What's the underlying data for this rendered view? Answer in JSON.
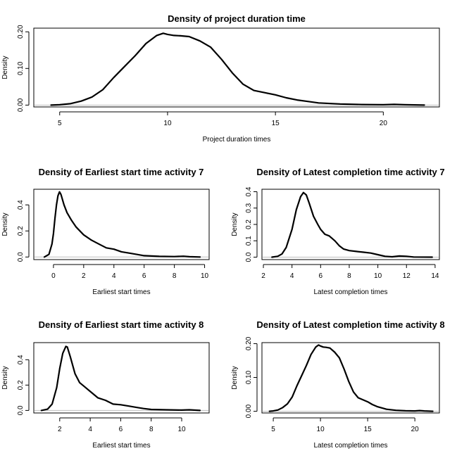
{
  "chart_data": [
    {
      "type": "line",
      "title": "Density of project duration time",
      "xlabel": "Project duration times",
      "ylabel": "Density",
      "xlim": [
        3.8,
        22.6
      ],
      "ylim": [
        -0.005,
        0.21
      ],
      "xticks": [
        5,
        10,
        15,
        20
      ],
      "yticks": [
        0.0,
        0.1,
        0.2
      ],
      "ytick_labels": [
        "0.00",
        "0.10",
        "0.20"
      ],
      "series": [
        {
          "x": [
            4.6,
            5.0,
            5.5,
            6.0,
            6.5,
            7.0,
            7.5,
            8.0,
            8.5,
            9.0,
            9.5,
            9.8,
            10.0,
            10.3,
            10.6,
            11.0,
            11.5,
            12.0,
            12.5,
            13.0,
            13.5,
            14.0,
            14.5,
            15.0,
            15.5,
            16.0,
            16.5,
            17.0,
            18.0,
            19.0,
            20.0,
            20.5,
            21.0,
            21.9
          ],
          "y": [
            0.0,
            0.001,
            0.004,
            0.011,
            0.022,
            0.042,
            0.075,
            0.105,
            0.135,
            0.168,
            0.19,
            0.196,
            0.193,
            0.19,
            0.189,
            0.187,
            0.175,
            0.158,
            0.125,
            0.088,
            0.057,
            0.04,
            0.034,
            0.028,
            0.02,
            0.014,
            0.01,
            0.006,
            0.003,
            0.0015,
            0.001,
            0.002,
            0.001,
            0.0
          ]
        }
      ]
    },
    {
      "type": "line",
      "title": "Density of Earliest start time activity  7",
      "xlabel": "Earliest start times",
      "ylabel": "Density",
      "xlim": [
        -1.3,
        10.3
      ],
      "ylim": [
        -0.02,
        0.52
      ],
      "xticks": [
        0,
        2,
        4,
        6,
        8,
        10
      ],
      "yticks": [
        0.0,
        0.2,
        0.4
      ],
      "ytick_labels": [
        "0.0",
        "0.2",
        "0.4"
      ],
      "series": [
        {
          "x": [
            -0.6,
            -0.3,
            -0.1,
            0.0,
            0.1,
            0.2,
            0.3,
            0.4,
            0.5,
            0.7,
            0.9,
            1.2,
            1.5,
            2.0,
            2.5,
            3.0,
            3.5,
            4.0,
            4.5,
            5.0,
            5.5,
            6.0,
            7.0,
            8.0,
            8.6,
            9.0,
            9.7
          ],
          "y": [
            0.0,
            0.02,
            0.1,
            0.18,
            0.3,
            0.4,
            0.47,
            0.5,
            0.48,
            0.4,
            0.34,
            0.28,
            0.23,
            0.17,
            0.13,
            0.1,
            0.07,
            0.06,
            0.04,
            0.03,
            0.02,
            0.01,
            0.005,
            0.003,
            0.006,
            0.002,
            0.0
          ]
        }
      ]
    },
    {
      "type": "line",
      "title": "Density of Latest completion time activity  7",
      "xlabel": "Latest completion times",
      "ylabel": "Density",
      "xlim": [
        1.9,
        14.3
      ],
      "ylim": [
        -0.015,
        0.415
      ],
      "xticks": [
        2,
        4,
        6,
        8,
        10,
        12,
        14
      ],
      "yticks": [
        0.0,
        0.1,
        0.2,
        0.3,
        0.4
      ],
      "ytick_labels": [
        "0.0",
        "0.1",
        "0.2",
        "0.3",
        "0.4"
      ],
      "series": [
        {
          "x": [
            2.6,
            3.0,
            3.3,
            3.6,
            4.0,
            4.3,
            4.6,
            4.8,
            5.0,
            5.2,
            5.5,
            5.8,
            6.0,
            6.3,
            6.6,
            7.0,
            7.3,
            7.6,
            8.0,
            8.5,
            9.0,
            9.5,
            10.0,
            10.5,
            11.0,
            11.5,
            12.0,
            12.5,
            13.8
          ],
          "y": [
            0.0,
            0.005,
            0.02,
            0.06,
            0.17,
            0.29,
            0.37,
            0.395,
            0.38,
            0.33,
            0.25,
            0.2,
            0.17,
            0.14,
            0.13,
            0.1,
            0.07,
            0.05,
            0.04,
            0.035,
            0.03,
            0.025,
            0.015,
            0.005,
            0.002,
            0.007,
            0.005,
            0.001,
            0.0
          ]
        }
      ]
    },
    {
      "type": "line",
      "title": "Density of Earliest start time activity  8",
      "xlabel": "Earliest start times",
      "ylabel": "Density",
      "xlim": [
        0.3,
        11.8
      ],
      "ylim": [
        -0.02,
        0.535
      ],
      "xticks": [
        2,
        4,
        6,
        8,
        10
      ],
      "yticks": [
        0.0,
        0.2,
        0.4
      ],
      "ytick_labels": [
        "0.0",
        "0.2",
        "0.4"
      ],
      "series": [
        {
          "x": [
            0.8,
            1.2,
            1.5,
            1.8,
            2.0,
            2.2,
            2.4,
            2.5,
            2.7,
            3.0,
            3.3,
            3.6,
            4.0,
            4.5,
            5.0,
            5.5,
            6.0,
            6.5,
            7.0,
            7.5,
            8.0,
            9.0,
            10.0,
            10.5,
            11.2
          ],
          "y": [
            0.0,
            0.01,
            0.05,
            0.18,
            0.33,
            0.45,
            0.505,
            0.5,
            0.42,
            0.29,
            0.22,
            0.19,
            0.15,
            0.1,
            0.08,
            0.05,
            0.045,
            0.035,
            0.025,
            0.015,
            0.008,
            0.005,
            0.003,
            0.005,
            0.0
          ]
        }
      ]
    },
    {
      "type": "line",
      "title": "Density of Latest completion time activity  8",
      "xlabel": "Latest completion times",
      "ylabel": "Density",
      "xlim": [
        3.8,
        22.6
      ],
      "ylim": [
        -0.005,
        0.203
      ],
      "xticks": [
        5,
        10,
        15,
        20
      ],
      "yticks": [
        0.0,
        0.1,
        0.2
      ],
      "ytick_labels": [
        "0.00",
        "0.10",
        "0.20"
      ],
      "series": [
        {
          "x": [
            4.6,
            5.0,
            5.5,
            6.0,
            6.5,
            7.0,
            7.5,
            8.0,
            8.5,
            9.0,
            9.5,
            9.8,
            10.0,
            10.3,
            10.6,
            11.0,
            11.5,
            12.0,
            12.5,
            13.0,
            13.5,
            14.0,
            14.5,
            15.0,
            15.5,
            16.0,
            16.5,
            17.0,
            18.0,
            19.0,
            20.0,
            20.5,
            21.0,
            21.9
          ],
          "y": [
            0.0,
            0.001,
            0.004,
            0.011,
            0.022,
            0.042,
            0.075,
            0.105,
            0.135,
            0.168,
            0.19,
            0.196,
            0.193,
            0.19,
            0.189,
            0.187,
            0.175,
            0.158,
            0.125,
            0.088,
            0.057,
            0.04,
            0.034,
            0.028,
            0.02,
            0.014,
            0.01,
            0.006,
            0.003,
            0.0015,
            0.001,
            0.002,
            0.001,
            0.0
          ]
        }
      ]
    }
  ]
}
